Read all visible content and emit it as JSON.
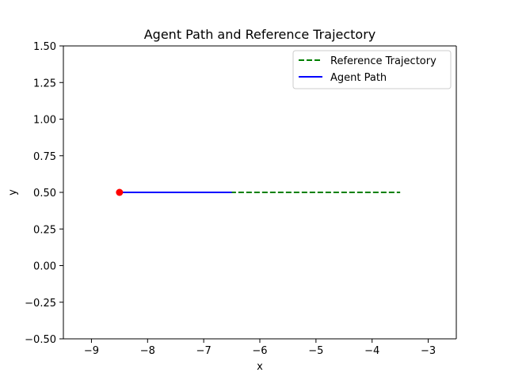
{
  "chart_data": {
    "type": "line",
    "title": "Agent Path and Reference Trajectory",
    "xlabel": "x",
    "ylabel": "y",
    "xlim": [
      -9.5,
      -2.5
    ],
    "ylim": [
      -0.5,
      1.5
    ],
    "xticks": [
      -9,
      -8,
      -7,
      -6,
      -5,
      -4,
      -3
    ],
    "xtick_labels": [
      "−9",
      "−8",
      "−7",
      "−6",
      "−5",
      "−4",
      "−3"
    ],
    "yticks": [
      -0.5,
      -0.25,
      0.0,
      0.25,
      0.5,
      0.75,
      1.0,
      1.25,
      1.5
    ],
    "ytick_labels": [
      "−0.50",
      "−0.25",
      "0.00",
      "0.25",
      "0.50",
      "0.75",
      "1.00",
      "1.25",
      "1.50"
    ],
    "grid": false,
    "legend_position": "top-right",
    "series": [
      {
        "name": "Reference Trajectory",
        "color": "#008000",
        "style": "dashed",
        "x": [
          -8.5,
          -3.5
        ],
        "y": [
          0.5,
          0.5
        ]
      },
      {
        "name": "Agent Path",
        "color": "#0000ff",
        "style": "solid",
        "x": [
          -8.5,
          -6.5
        ],
        "y": [
          0.5,
          0.5
        ]
      }
    ],
    "markers": [
      {
        "x": -8.5,
        "y": 0.5,
        "color": "#ff0000"
      }
    ]
  }
}
